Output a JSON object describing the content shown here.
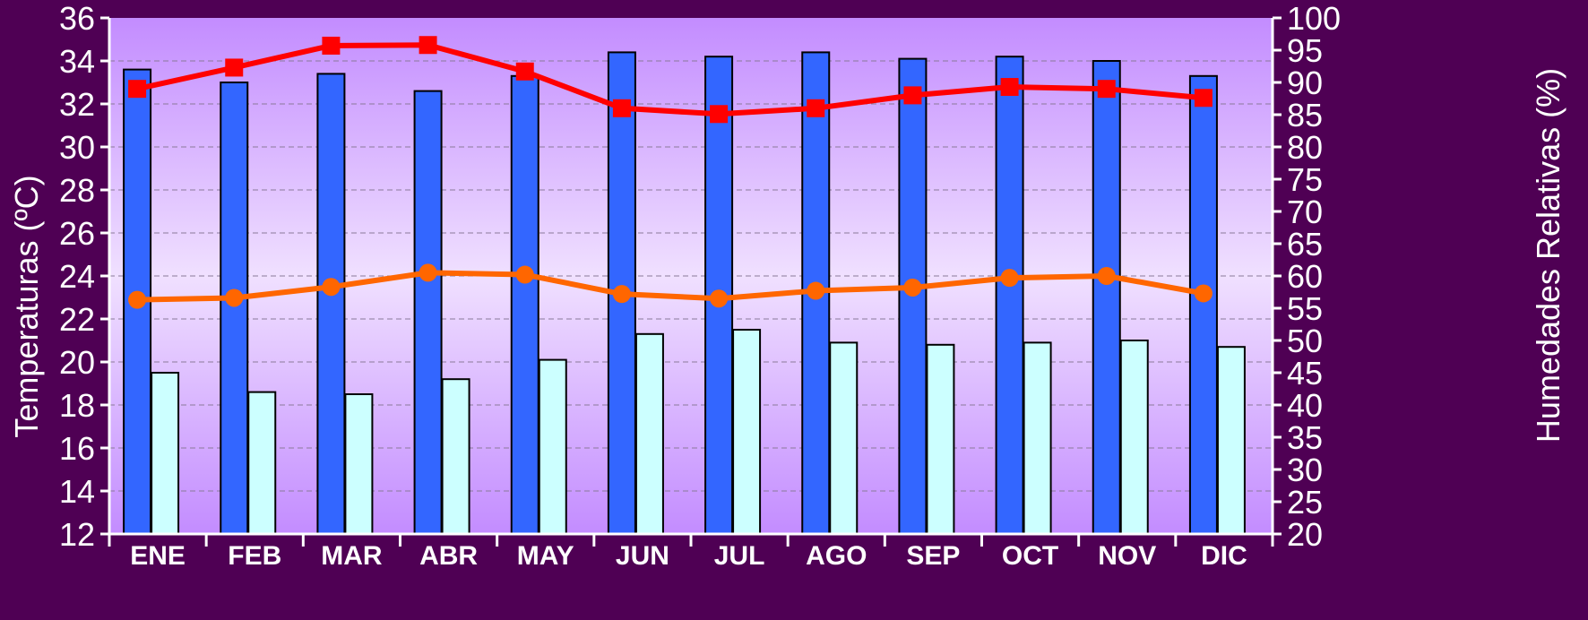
{
  "chart_data": {
    "type": "bar",
    "title": "",
    "categories": [
      "ENE",
      "FEB",
      "MAR",
      "ABR",
      "MAY",
      "JUN",
      "JUL",
      "AGO",
      "SEP",
      "OCT",
      "NOV",
      "DIC"
    ],
    "ylabel_left": "Temperaturas (ºC)",
    "ylabel_right": "Humedades Relativas (%)",
    "ylim_left": [
      12,
      36
    ],
    "ylim_right": [
      20,
      100
    ],
    "yticks_left": [
      "12",
      "14",
      "16",
      "18",
      "20",
      "22",
      "24",
      "26",
      "28",
      "30",
      "32",
      "34",
      "36"
    ],
    "yticks_right": [
      "20",
      "25",
      "30",
      "35",
      "40",
      "45",
      "50",
      "55",
      "60",
      "65",
      "70",
      "75",
      "80",
      "85",
      "90",
      "95",
      "100"
    ],
    "grid": true,
    "series": [
      {
        "type": "bar",
        "axis": "left",
        "color": "#3366ff",
        "values": [
          33.6,
          33.0,
          33.4,
          32.6,
          33.3,
          34.4,
          34.2,
          34.4,
          34.1,
          34.2,
          34.0,
          33.3
        ]
      },
      {
        "type": "bar",
        "axis": "left",
        "color": "#ccffff",
        "values": [
          19.5,
          18.6,
          18.5,
          19.2,
          20.1,
          21.3,
          21.5,
          20.9,
          20.8,
          20.9,
          21.0,
          20.7
        ]
      },
      {
        "type": "line",
        "axis": "right",
        "marker": "square",
        "color": "#ff0000",
        "values": [
          89,
          92.3,
          95.7,
          95.8,
          91.7,
          86,
          85.1,
          86,
          88,
          89.3,
          89.0,
          87.6
        ]
      },
      {
        "type": "line",
        "axis": "right",
        "marker": "circle",
        "color": "#ff6600",
        "values": [
          56.3,
          56.6,
          58.3,
          60.5,
          60.2,
          57.2,
          56.5,
          57.7,
          58.2,
          59.7,
          60.0,
          57.3
        ]
      }
    ]
  },
  "colors": {
    "background": "#4f0054",
    "plot_edge": "#c38cff",
    "plot_center": "#f0e0ff",
    "axis_text": "#ffffff"
  }
}
